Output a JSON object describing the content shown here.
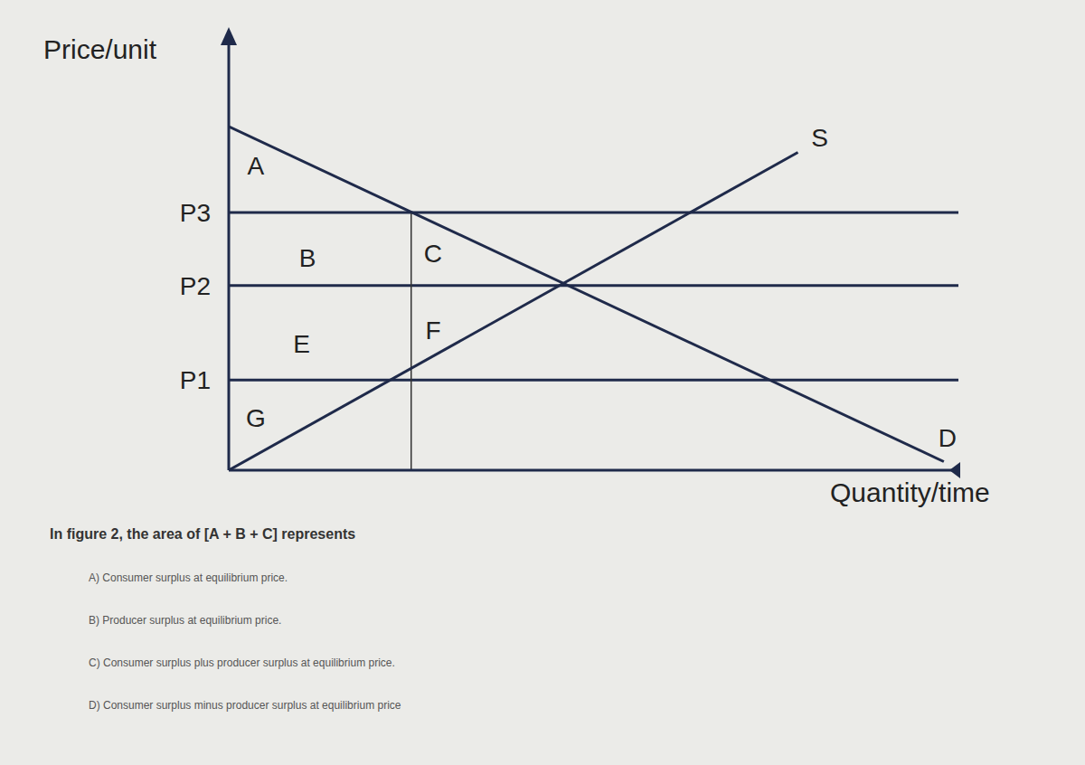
{
  "chart_data": {
    "type": "line",
    "x_label": "Quantity/time",
    "y_label": "Price/unit",
    "xlim": [
      0,
      100
    ],
    "ylim": [
      0,
      100
    ],
    "xticks": [],
    "yticks": [
      {
        "value": 21,
        "label": "P1"
      },
      {
        "value": 43,
        "label": "P2"
      },
      {
        "value": 60,
        "label": "P3"
      }
    ],
    "tick_labels": "y",
    "grid": true,
    "series": [
      {
        "name": "D",
        "color": "#1f2a4a",
        "x": [
          0,
          98
        ],
        "values": [
          80,
          2
        ]
      },
      {
        "name": "S",
        "color": "#1f2a4a",
        "x": [
          0,
          78
        ],
        "values": [
          0,
          74
        ]
      }
    ],
    "quantity_mark": {
      "x": 25,
      "y": 60
    },
    "annotations": [
      {
        "text": "A",
        "x": 3.7,
        "y": 70.5
      },
      {
        "text": "B",
        "x": 10.8,
        "y": 49
      },
      {
        "text": "C",
        "x": 28,
        "y": 50
      },
      {
        "text": "E",
        "x": 10,
        "y": 29
      },
      {
        "text": "F",
        "x": 28,
        "y": 32
      },
      {
        "text": "G",
        "x": 3.7,
        "y": 11.6
      },
      {
        "text": "S",
        "x": 81,
        "y": 77
      },
      {
        "text": "D",
        "x": 98.5,
        "y": 7
      }
    ]
  },
  "question": "In figure 2, the area of [A + B + C] represents",
  "options": [
    "A) Consumer surplus at equilibrium price.",
    "B) Producer surplus at equilibrium price.",
    "C) Consumer surplus plus producer surplus at equilibrium price.",
    "D) Consumer surplus minus producer surplus at equilibrium price"
  ]
}
